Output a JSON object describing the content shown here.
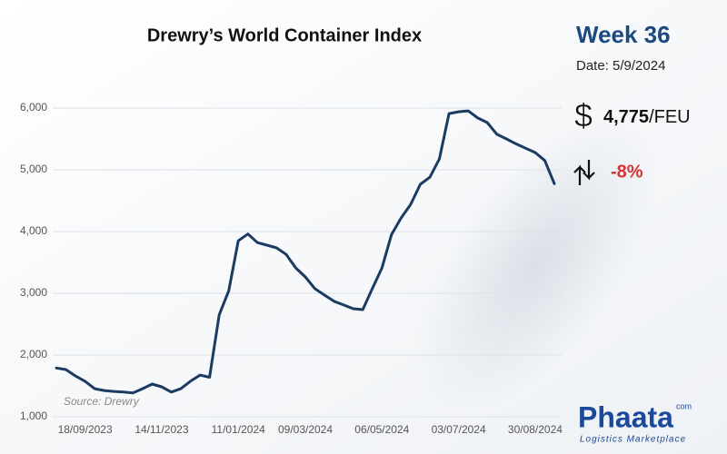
{
  "chart_data": {
    "type": "line",
    "title": "Drewry’s World Container Index",
    "source": "Source: Drewry",
    "categories": [
      null,
      null,
      null,
      "18/09/2023",
      null,
      null,
      null,
      null,
      null,
      null,
      null,
      "14/11/2023",
      null,
      null,
      null,
      null,
      null,
      null,
      null,
      "11/01/2024",
      null,
      null,
      null,
      null,
      null,
      null,
      "09/03/2024",
      null,
      null,
      null,
      null,
      null,
      null,
      null,
      "06/05/2024",
      null,
      null,
      null,
      null,
      null,
      null,
      null,
      "03/07/2024",
      null,
      null,
      null,
      null,
      null,
      null,
      null,
      "30/08/2024",
      null,
      null
    ],
    "values": [
      1790,
      1765,
      1660,
      1575,
      1455,
      1425,
      1410,
      1400,
      1385,
      1455,
      1530,
      1485,
      1400,
      1455,
      1575,
      1675,
      1640,
      2650,
      3040,
      3850,
      3960,
      3820,
      3780,
      3735,
      3630,
      3410,
      3265,
      3075,
      2970,
      2870,
      2810,
      2750,
      2735,
      3080,
      3410,
      3950,
      4220,
      4440,
      4765,
      4880,
      5175,
      5910,
      5940,
      5955,
      5840,
      5765,
      5575,
      5500,
      5420,
      5350,
      5280,
      5150,
      4775
    ],
    "color": "#1c3b63",
    "ylim": [
      1000,
      6300
    ],
    "yticks": [
      {
        "value": 1000,
        "label": "1,000"
      },
      {
        "value": 2000,
        "label": "2,000"
      },
      {
        "value": 3000,
        "label": "3,000"
      },
      {
        "value": 4000,
        "label": "4,000"
      },
      {
        "value": 5000,
        "label": "5,000"
      },
      {
        "value": 6000,
        "label": "6,000"
      }
    ],
    "grid": true
  },
  "panel": {
    "week": "Week 36",
    "date": "Date: 5/9/2024",
    "currency": "$",
    "price": "4,775",
    "unit": "/FEU",
    "change": "-8%"
  },
  "logo": {
    "name": "Phaata",
    "domain": "com",
    "tagline": "Logistics Marketplace"
  }
}
